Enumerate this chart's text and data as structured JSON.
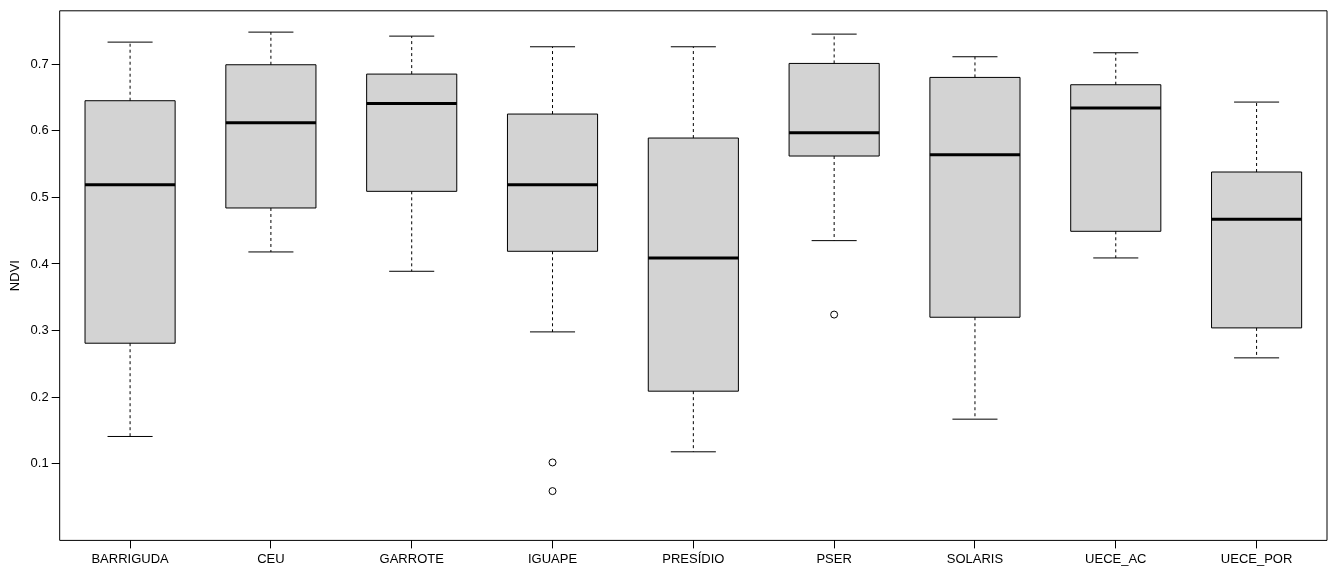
{
  "chart_data": {
    "type": "box",
    "ylabel": "NDVI",
    "color": "#d3d3d3",
    "grid": false,
    "legend": false,
    "categories": [
      "BARRIGUDA",
      "CEU",
      "GARROTE",
      "IGUAPE",
      "PRESÍDIO",
      "PSER",
      "SOLARIS",
      "UECE_AC",
      "UECE_POR"
    ],
    "ylim": [
      -0.015,
      0.78
    ],
    "yticks": [
      0.1,
      0.2,
      0.3,
      0.4,
      0.5,
      0.6,
      0.7
    ],
    "boxes": [
      {
        "low": 0.141,
        "q1": 0.281,
        "median": 0.519,
        "q3": 0.645,
        "high": 0.733
      },
      {
        "low": 0.418,
        "q1": 0.484,
        "median": 0.612,
        "q3": 0.699,
        "high": 0.748
      },
      {
        "low": 0.389,
        "q1": 0.509,
        "median": 0.641,
        "q3": 0.685,
        "high": 0.742
      },
      {
        "low": 0.298,
        "q1": 0.419,
        "median": 0.519,
        "q3": 0.625,
        "high": 0.726,
        "outliers": [
          0.102,
          0.059
        ]
      },
      {
        "low": 0.118,
        "q1": 0.209,
        "median": 0.409,
        "q3": 0.589,
        "high": 0.726
      },
      {
        "low": 0.435,
        "q1": 0.562,
        "median": 0.597,
        "q3": 0.701,
        "high": 0.745,
        "outliers": [
          0.324
        ]
      },
      {
        "low": 0.167,
        "q1": 0.32,
        "median": 0.564,
        "q3": 0.68,
        "high": 0.711
      },
      {
        "low": 0.409,
        "q1": 0.449,
        "median": 0.634,
        "q3": 0.669,
        "high": 0.717
      },
      {
        "low": 0.259,
        "q1": 0.304,
        "median": 0.467,
        "q3": 0.538,
        "high": 0.643
      }
    ]
  }
}
